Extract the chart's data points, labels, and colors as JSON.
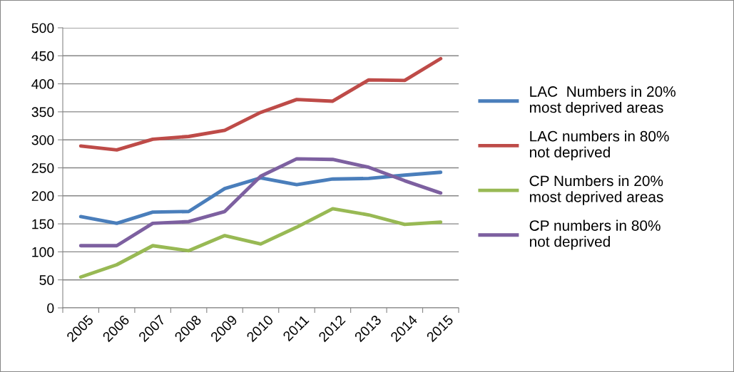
{
  "chart_data": {
    "type": "line",
    "categories": [
      "2005",
      "2006",
      "2007",
      "2008",
      "2009",
      "2010",
      "2011",
      "2012",
      "2013",
      "2014",
      "2015"
    ],
    "series": [
      {
        "name": "LAC  Numbers in 20% most deprived areas",
        "color": "#4a7ebb",
        "values": [
          163,
          151,
          171,
          172,
          213,
          232,
          220,
          230,
          231,
          237,
          242
        ]
      },
      {
        "name": "LAC numbers in 80% not deprived",
        "color": "#be4b48",
        "values": [
          289,
          282,
          301,
          306,
          317,
          349,
          372,
          369,
          407,
          406,
          445
        ]
      },
      {
        "name": "CP Numbers in 20% most deprived areas",
        "color": "#98b954",
        "values": [
          55,
          77,
          111,
          102,
          129,
          114,
          144,
          177,
          166,
          149,
          153
        ]
      },
      {
        "name": "CP numbers in 80% not deprived",
        "color": "#7d60a0",
        "values": [
          111,
          111,
          151,
          154,
          172,
          235,
          266,
          265,
          251,
          227,
          205
        ]
      }
    ],
    "ylim": [
      0,
      500
    ],
    "yticks": [
      0,
      50,
      100,
      150,
      200,
      250,
      300,
      350,
      400,
      450,
      500
    ],
    "grid": "y",
    "legend": "right",
    "marker": "none",
    "line_style": "solid"
  }
}
